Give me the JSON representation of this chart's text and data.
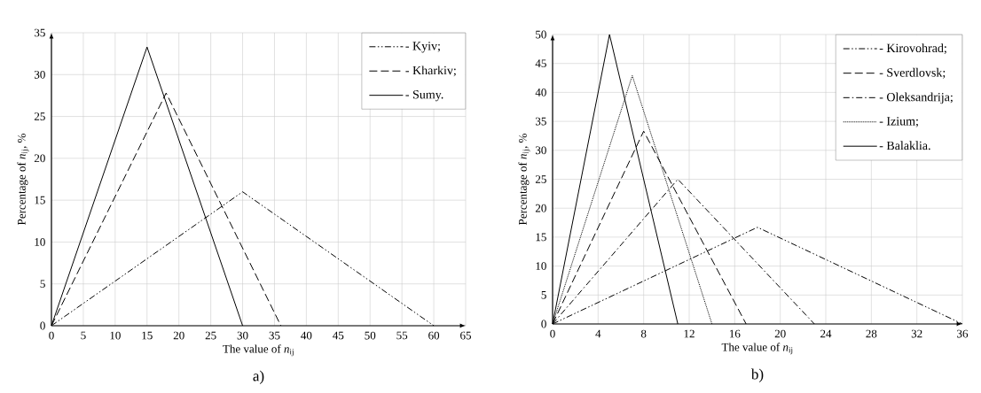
{
  "chart_data": [
    {
      "type": "line",
      "xlabel": "The value of *n*$_{ij}$",
      "ylabel": "Percentage of *n*$_{ij}$, %",
      "annotations": [
        "a)"
      ],
      "xlim": [
        0,
        65
      ],
      "ylim": [
        0,
        35
      ],
      "xticks": [
        0,
        5,
        10,
        15,
        20,
        25,
        30,
        35,
        40,
        45,
        50,
        55,
        60,
        65
      ],
      "yticks": [
        0,
        5,
        10,
        15,
        20,
        25,
        30,
        35
      ],
      "grid": true,
      "legend": "top right",
      "marker": "none",
      "series": [
        {
          "name": "- Kyiv;",
          "color": "#000000",
          "line_style": "dashdotdotted",
          "x": [
            0,
            30,
            60
          ],
          "values": [
            0,
            16,
            0
          ]
        },
        {
          "name": "- Kharkiv;",
          "color": "#000000",
          "line_style": "dashed",
          "x": [
            0,
            18,
            36
          ],
          "values": [
            0,
            27.8,
            0
          ]
        },
        {
          "name": "- Sumy.",
          "color": "#000000",
          "line_style": "solid",
          "x": [
            0,
            15,
            30
          ],
          "values": [
            0,
            33.3,
            0
          ]
        }
      ]
    },
    {
      "type": "line",
      "xlabel": "The value of *n*$_{ij}$",
      "ylabel": "Percentage of *n*$_{ij}$, %",
      "annotations": [
        "b)"
      ],
      "xlim": [
        0,
        36
      ],
      "ylim": [
        0,
        50
      ],
      "xticks": [
        0,
        4,
        8,
        12,
        16,
        20,
        24,
        28,
        32,
        36
      ],
      "yticks": [
        0,
        5,
        10,
        15,
        20,
        25,
        30,
        35,
        40,
        45,
        50
      ],
      "grid": true,
      "legend": "top right",
      "marker": "none",
      "series": [
        {
          "name": "- Kirovohrad;",
          "color": "#000000",
          "line_style": "dashdotdotted",
          "x": [
            0,
            18,
            36
          ],
          "values": [
            0,
            16.7,
            0
          ]
        },
        {
          "name": "- Sverdlovsk;",
          "color": "#000000",
          "line_style": "dashed",
          "x": [
            0,
            8,
            17
          ],
          "values": [
            0,
            33.3,
            0
          ]
        },
        {
          "name": "- Oleksandrija;",
          "color": "#000000",
          "line_style": "dashdotted",
          "x": [
            0,
            11,
            23
          ],
          "values": [
            0,
            25,
            0
          ]
        },
        {
          "name": "- Izium;",
          "color": "#000000",
          "line_style": "dotted",
          "x": [
            0,
            7,
            14
          ],
          "values": [
            0,
            42.9,
            0
          ]
        },
        {
          "name": "- Balaklia.",
          "color": "#000000",
          "line_style": "solid",
          "x": [
            0,
            5,
            11
          ],
          "values": [
            0,
            50,
            0
          ]
        }
      ]
    }
  ]
}
